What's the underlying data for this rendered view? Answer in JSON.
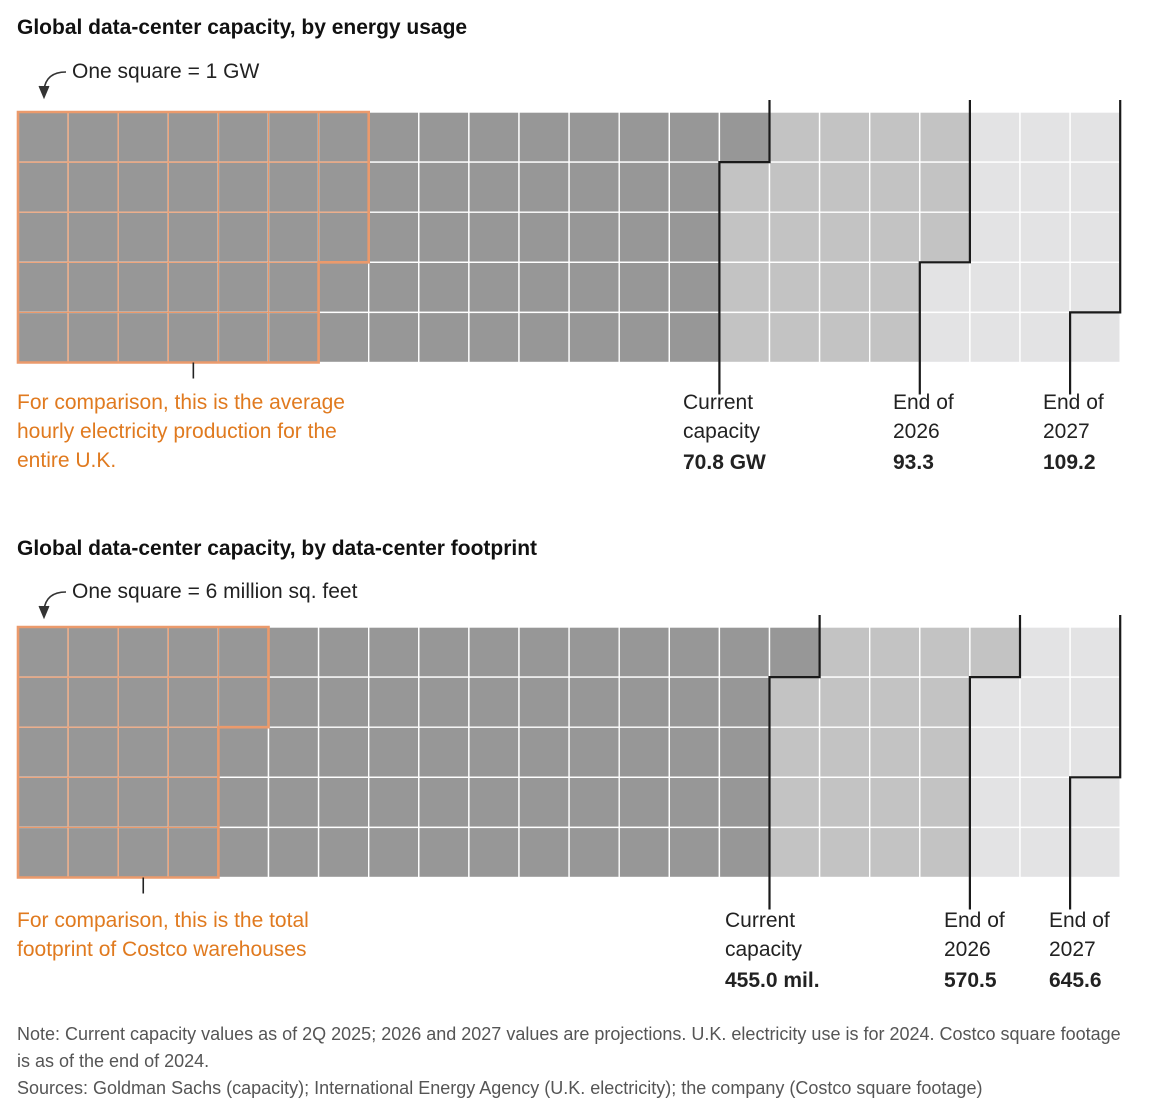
{
  "chart_data": [
    {
      "type": "waffle",
      "title": "Global data-center capacity, by energy usage",
      "unit_label": "One square = 1 GW",
      "grid": true,
      "comparison": {
        "text": "For comparison, this is the average hourly electricity production for the entire U.K.",
        "squares": 33
      },
      "milestones": [
        {
          "label": "Current capacity",
          "value_label": "70.8 GW",
          "squares": 71
        },
        {
          "label": "End of 2026",
          "value_label": "93.3",
          "squares": 93
        },
        {
          "label": "End of 2027",
          "value_label": "109.2",
          "squares": 109
        }
      ]
    },
    {
      "type": "waffle",
      "title": "Global data-center capacity, by data-center footprint",
      "unit_label": "One square = 6 million sq. feet",
      "grid": true,
      "comparison": {
        "text": "For comparison, this is the total footprint of Costco warehouses",
        "squares": 22
      },
      "milestones": [
        {
          "label": "Current capacity",
          "value_label": "455.0 mil.",
          "squares": 76
        },
        {
          "label": "End of 2026",
          "value_label": "570.5",
          "squares": 96
        },
        {
          "label": "End of 2027",
          "value_label": "645.6",
          "squares": 108
        }
      ]
    }
  ],
  "colors": {
    "current": "#979797",
    "projection_2026": "#c3c3c3",
    "projection_2027": "#e3e3e4",
    "comparison": "#eb9a6c",
    "comparison_text": "#e07a1f",
    "gridline": "#ffffff",
    "milestone_line": "#1a1a1a"
  },
  "note": "Note: Current capacity values as of 2Q 2025; 2026 and 2027 values are projections. U.K. electricity use is for 2024. Costco square footage is as of the end of 2024.",
  "sources": "Sources: Goldman Sachs (capacity); International Energy Agency (U.K. electricity); the company (Costco square footage)"
}
